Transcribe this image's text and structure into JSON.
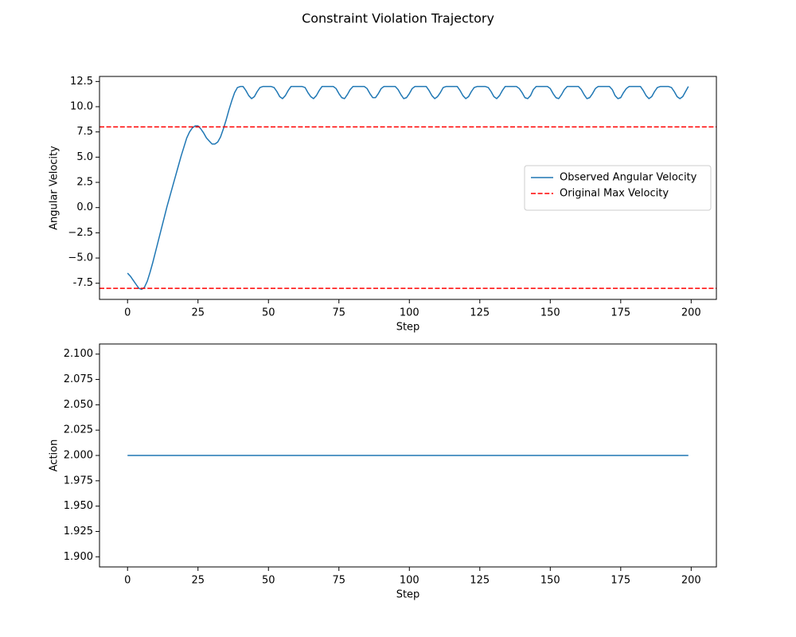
{
  "title": "Constraint Violation Trajectory",
  "chart_data": [
    {
      "type": "line",
      "xlabel": "Step",
      "ylabel": "Angular Velocity",
      "xlim": [
        -9.95,
        208.95
      ],
      "xticks": [
        0,
        25,
        50,
        75,
        100,
        125,
        150,
        175,
        200
      ],
      "ylim": [
        -9.1,
        13.0
      ],
      "yticks": [
        -7.5,
        {
          "value": -5,
          "label": "−5.0"
        },
        {
          "value": -2.5,
          "label": "−2.5"
        },
        {
          "value": 0,
          "label": "0.0"
        },
        2.5,
        {
          "value": 5,
          "label": "5.0"
        },
        7.5,
        {
          "value": 10,
          "label": "10.0"
        },
        12.5
      ],
      "legend": "center right",
      "x": [
        0,
        1,
        2,
        3,
        4,
        5,
        6,
        7,
        8,
        9,
        10,
        11,
        12,
        13,
        14,
        15,
        16,
        17,
        18,
        19,
        20,
        21,
        22,
        23,
        24,
        25,
        26,
        27,
        28,
        29,
        30,
        31,
        32,
        33,
        34,
        35,
        36,
        37,
        38,
        39,
        40,
        41,
        42,
        43,
        44,
        45,
        46,
        47,
        48,
        49,
        50,
        51,
        52,
        53,
        54,
        55,
        56,
        57,
        58,
        59,
        60,
        61,
        62,
        63,
        64,
        65,
        66,
        67,
        68,
        69,
        70,
        71,
        72,
        73,
        74,
        75,
        76,
        77,
        78,
        79,
        80,
        81,
        82,
        83,
        84,
        85,
        86,
        87,
        88,
        89,
        90,
        91,
        92,
        93,
        94,
        95,
        96,
        97,
        98,
        99,
        100,
        101,
        102,
        103,
        104,
        105,
        106,
        107,
        108,
        109,
        110,
        111,
        112,
        113,
        114,
        115,
        116,
        117,
        118,
        119,
        120,
        121,
        122,
        123,
        124,
        125,
        126,
        127,
        128,
        129,
        130,
        131,
        132,
        133,
        134,
        135,
        136,
        137,
        138,
        139,
        140,
        141,
        142,
        143,
        144,
        145,
        146,
        147,
        148,
        149,
        150,
        151,
        152,
        153,
        154,
        155,
        156,
        157,
        158,
        159,
        160,
        161,
        162,
        163,
        164,
        165,
        166,
        167,
        168,
        169,
        170,
        171,
        172,
        173,
        174,
        175,
        176,
        177,
        178,
        179,
        180,
        181,
        182,
        183,
        184,
        185,
        186,
        187,
        188,
        189,
        190,
        191,
        192,
        193,
        194,
        195,
        196,
        197,
        198,
        199
      ],
      "series": [
        {
          "name": "Observed Angular Velocity",
          "color": "#1f77b4",
          "values": [
            -6.5,
            -6.8,
            -7.2,
            -7.6,
            -8.0,
            -8.1,
            -7.9,
            -7.3,
            -6.4,
            -5.4,
            -4.3,
            -3.2,
            -2.1,
            -1.0,
            0.1,
            1.1,
            2.1,
            3.1,
            4.1,
            5.1,
            6.0,
            6.9,
            7.5,
            7.9,
            8.1,
            8.1,
            7.8,
            7.4,
            6.9,
            6.6,
            6.3,
            6.3,
            6.5,
            7.0,
            7.8,
            8.7,
            9.7,
            10.6,
            11.4,
            11.9,
            12,
            12,
            11.6,
            11.1,
            10.8,
            11.0,
            11.5,
            11.9,
            12,
            12,
            12,
            12,
            11.9,
            11.5,
            11.0,
            10.8,
            11.1,
            11.6,
            12,
            12,
            12,
            12,
            12,
            11.9,
            11.4,
            11.0,
            10.8,
            11.1,
            11.6,
            12,
            12,
            12,
            12,
            12,
            11.8,
            11.3,
            10.9,
            10.8,
            11.2,
            11.7,
            12,
            12,
            12,
            12,
            12,
            11.8,
            11.3,
            10.9,
            10.9,
            11.3,
            11.8,
            12,
            12,
            12,
            12,
            12,
            11.7,
            11.2,
            10.8,
            10.9,
            11.3,
            11.8,
            12,
            12,
            12,
            12,
            12,
            11.6,
            11.1,
            10.8,
            11.0,
            11.4,
            11.9,
            12,
            12,
            12,
            12,
            12,
            11.6,
            11.1,
            10.8,
            11.0,
            11.5,
            11.9,
            12,
            12,
            12,
            12,
            11.9,
            11.5,
            11.0,
            10.8,
            11.1,
            11.6,
            12,
            12,
            12,
            12,
            12,
            11.8,
            11.4,
            10.9,
            10.8,
            11.1,
            11.7,
            12,
            12,
            12,
            12,
            12,
            11.8,
            11.3,
            10.9,
            10.8,
            11.2,
            11.7,
            12,
            12,
            12,
            12,
            12,
            11.7,
            11.2,
            10.8,
            10.9,
            11.3,
            11.8,
            12,
            12,
            12,
            12,
            12,
            11.7,
            11.1,
            10.8,
            10.9,
            11.4,
            11.8,
            12,
            12,
            12,
            12,
            12,
            11.6,
            11.1,
            10.8,
            11.0,
            11.5,
            11.9,
            12,
            12,
            12,
            12,
            11.9,
            11.5,
            11.0,
            10.8,
            11.0,
            11.5,
            12
          ]
        }
      ],
      "reference_lines": {
        "name": "Original Max Velocity",
        "color": "#ff0000",
        "dashed": true,
        "values": [
          8,
          -8
        ]
      }
    },
    {
      "type": "line",
      "xlabel": "Step",
      "ylabel": "Action",
      "xlim": [
        -9.95,
        208.95
      ],
      "xticks": [
        0,
        25,
        50,
        75,
        100,
        125,
        150,
        175,
        200
      ],
      "ylim": [
        1.89,
        2.11
      ],
      "yticks": [
        {
          "value": 1.9,
          "label": "1.900"
        },
        1.925,
        {
          "value": 1.95,
          "label": "1.950"
        },
        1.975,
        {
          "value": 2,
          "label": "2.000"
        },
        2.025,
        {
          "value": 2.05,
          "label": "2.050"
        },
        2.075,
        {
          "value": 2.1,
          "label": "2.100"
        }
      ],
      "x": [
        0,
        1,
        2,
        3,
        4,
        5,
        6,
        7,
        8,
        9,
        10,
        11,
        12,
        13,
        14,
        15,
        16,
        17,
        18,
        19,
        20,
        21,
        22,
        23,
        24,
        25,
        26,
        27,
        28,
        29,
        30,
        31,
        32,
        33,
        34,
        35,
        36,
        37,
        38,
        39,
        40,
        41,
        42,
        43,
        44,
        45,
        46,
        47,
        48,
        49,
        50,
        51,
        52,
        53,
        54,
        55,
        56,
        57,
        58,
        59,
        60,
        61,
        62,
        63,
        64,
        65,
        66,
        67,
        68,
        69,
        70,
        71,
        72,
        73,
        74,
        75,
        76,
        77,
        78,
        79,
        80,
        81,
        82,
        83,
        84,
        85,
        86,
        87,
        88,
        89,
        90,
        91,
        92,
        93,
        94,
        95,
        96,
        97,
        98,
        99,
        100,
        101,
        102,
        103,
        104,
        105,
        106,
        107,
        108,
        109,
        110,
        111,
        112,
        113,
        114,
        115,
        116,
        117,
        118,
        119,
        120,
        121,
        122,
        123,
        124,
        125,
        126,
        127,
        128,
        129,
        130,
        131,
        132,
        133,
        134,
        135,
        136,
        137,
        138,
        139,
        140,
        141,
        142,
        143,
        144,
        145,
        146,
        147,
        148,
        149,
        150,
        151,
        152,
        153,
        154,
        155,
        156,
        157,
        158,
        159,
        160,
        161,
        162,
        163,
        164,
        165,
        166,
        167,
        168,
        169,
        170,
        171,
        172,
        173,
        174,
        175,
        176,
        177,
        178,
        179,
        180,
        181,
        182,
        183,
        184,
        185,
        186,
        187,
        188,
        189,
        190,
        191,
        192,
        193,
        194,
        195,
        196,
        197,
        198,
        199
      ],
      "series": [
        {
          "color": "#1f77b4",
          "values": [
            2,
            2,
            2,
            2,
            2,
            2,
            2,
            2,
            2,
            2,
            2,
            2,
            2,
            2,
            2,
            2,
            2,
            2,
            2,
            2,
            2,
            2,
            2,
            2,
            2,
            2,
            2,
            2,
            2,
            2,
            2,
            2,
            2,
            2,
            2,
            2,
            2,
            2,
            2,
            2,
            2,
            2,
            2,
            2,
            2,
            2,
            2,
            2,
            2,
            2,
            2,
            2,
            2,
            2,
            2,
            2,
            2,
            2,
            2,
            2,
            2,
            2,
            2,
            2,
            2,
            2,
            2,
            2,
            2,
            2,
            2,
            2,
            2,
            2,
            2,
            2,
            2,
            2,
            2,
            2,
            2,
            2,
            2,
            2,
            2,
            2,
            2,
            2,
            2,
            2,
            2,
            2,
            2,
            2,
            2,
            2,
            2,
            2,
            2,
            2,
            2,
            2,
            2,
            2,
            2,
            2,
            2,
            2,
            2,
            2,
            2,
            2,
            2,
            2,
            2,
            2,
            2,
            2,
            2,
            2,
            2,
            2,
            2,
            2,
            2,
            2,
            2,
            2,
            2,
            2,
            2,
            2,
            2,
            2,
            2,
            2,
            2,
            2,
            2,
            2,
            2,
            2,
            2,
            2,
            2,
            2,
            2,
            2,
            2,
            2,
            2,
            2,
            2,
            2,
            2,
            2,
            2,
            2,
            2,
            2,
            2,
            2,
            2,
            2,
            2,
            2,
            2,
            2,
            2,
            2,
            2,
            2,
            2,
            2,
            2,
            2,
            2,
            2,
            2,
            2,
            2,
            2,
            2,
            2,
            2,
            2,
            2,
            2,
            2,
            2,
            2,
            2,
            2,
            2,
            2,
            2,
            2,
            2,
            2,
            2
          ]
        }
      ]
    }
  ]
}
